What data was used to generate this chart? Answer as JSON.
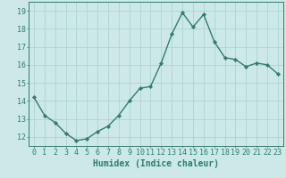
{
  "x": [
    0,
    1,
    2,
    3,
    4,
    5,
    6,
    7,
    8,
    9,
    10,
    11,
    12,
    13,
    14,
    15,
    16,
    17,
    18,
    19,
    20,
    21,
    22,
    23
  ],
  "y": [
    14.2,
    13.2,
    12.8,
    12.2,
    11.8,
    11.9,
    12.3,
    12.6,
    13.2,
    14.0,
    14.7,
    14.8,
    16.1,
    17.7,
    18.9,
    18.1,
    18.8,
    17.3,
    16.4,
    16.3,
    15.9,
    16.1,
    16.0,
    15.5
  ],
  "line_color": "#2e7d6e",
  "marker": "D",
  "marker_size": 2.2,
  "bg_color": "#cce9e7",
  "grid_color": "#aed4d1",
  "xlabel": "Humidex (Indice chaleur)",
  "xlim": [
    -0.5,
    23.5
  ],
  "ylim": [
    11.5,
    19.5
  ],
  "yticks": [
    12,
    13,
    14,
    15,
    16,
    17,
    18,
    19
  ],
  "xticks": [
    0,
    1,
    2,
    3,
    4,
    5,
    6,
    7,
    8,
    9,
    10,
    11,
    12,
    13,
    14,
    15,
    16,
    17,
    18,
    19,
    20,
    21,
    22,
    23
  ],
  "tick_label_color": "#2e7d6e",
  "axis_color": "#2e7d6e",
  "font_size_ticks": 6,
  "font_size_xlabel": 7,
  "line_width": 1.0
}
